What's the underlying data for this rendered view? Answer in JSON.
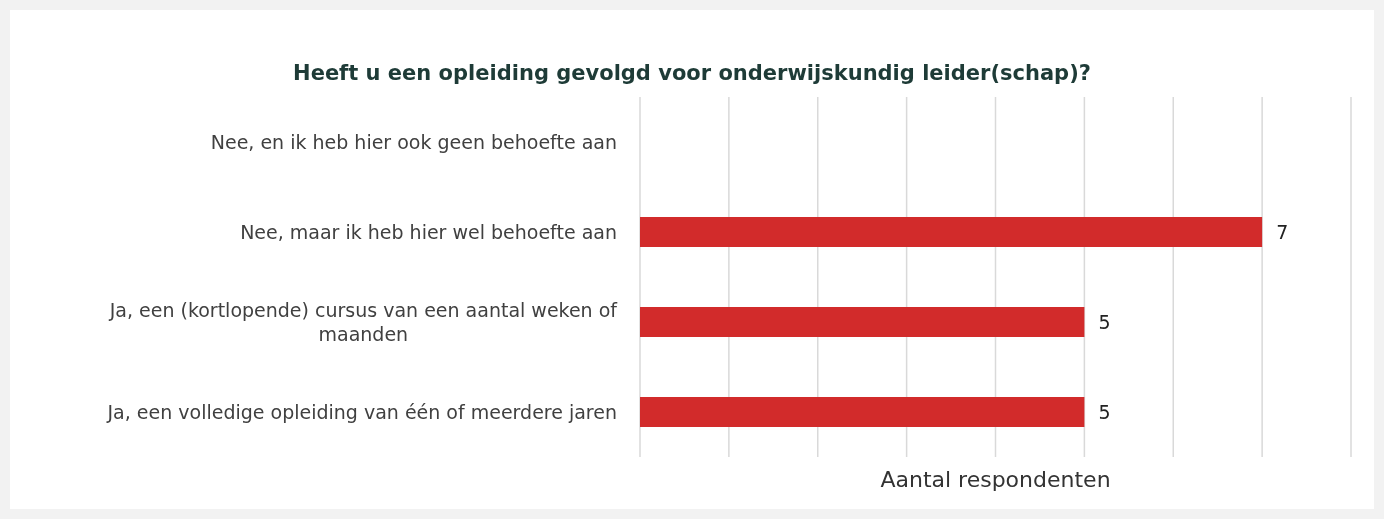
{
  "chart_data": {
    "type": "bar",
    "orientation": "horizontal",
    "title": "Heeft u een opleiding gevolgd voor onderwijskundig leider(schap)?",
    "xlabel": "Aantal respondenten",
    "categories": [
      "Nee, en ik heb hier ook geen behoefte aan",
      "Nee, maar ik heb hier wel behoefte aan",
      "Ja, een (kortlopende) cursus van een aantal weken of maanden",
      "Ja, een volledige opleiding van één of meerdere jaren"
    ],
    "values": [
      null,
      7,
      5,
      5
    ],
    "color": "#d22b2b",
    "data_labels": true,
    "xlim": [
      0,
      8
    ],
    "xticks": [
      {
        "value": 0,
        "label": null
      },
      {
        "value": 1,
        "label": null
      },
      {
        "value": 2,
        "label": null
      },
      {
        "value": 3,
        "label": null
      },
      {
        "value": 4,
        "label": null
      },
      {
        "value": 5,
        "label": null
      },
      {
        "value": 6,
        "label": null
      },
      {
        "value": 7,
        "label": null
      },
      {
        "value": 8,
        "label": null
      }
    ],
    "grid": "x",
    "tick_labels": "y"
  }
}
